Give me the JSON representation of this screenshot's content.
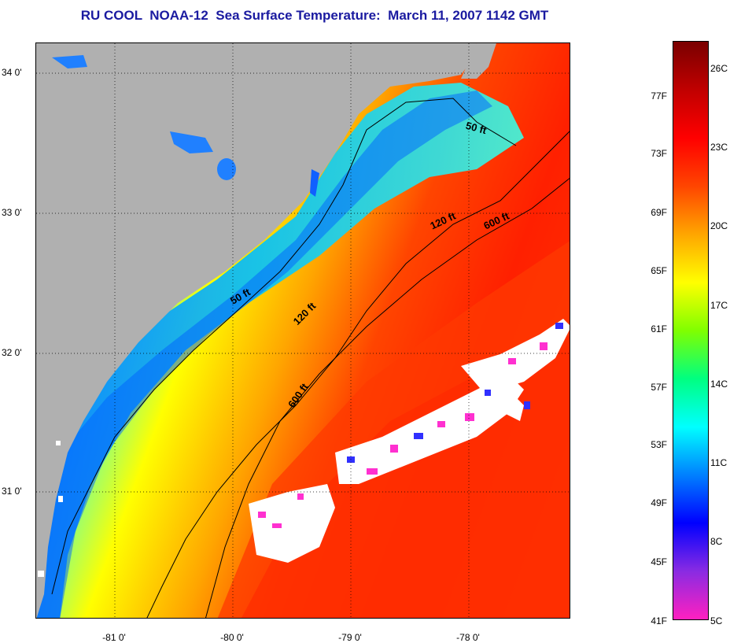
{
  "title": "RU COOL  NOAA-12  Sea Surface Temperature:  March 11, 2007 1142 GMT",
  "latitude_labels": [
    "34 0'",
    "33 0'",
    "32 0'",
    "31 0'"
  ],
  "longitude_labels": [
    "-81 0'",
    "-80 0'",
    "-79 0'",
    "-78 0'"
  ],
  "contours": [
    {
      "label": "50 ft"
    },
    {
      "label": "120 ft"
    },
    {
      "label": "600 ft"
    }
  ],
  "contour_labels": {
    "ne_50": "50 ft",
    "ne_120": "120 ft",
    "ne_600": "600 ft",
    "sw_50": "50 ft",
    "sw_120": "120 ft",
    "sw_600": "600 ft"
  },
  "colorbar": {
    "fahrenheit_labels": [
      "77F",
      "73F",
      "69F",
      "65F",
      "61F",
      "57F",
      "53F",
      "49F",
      "45F",
      "41F"
    ],
    "celsius_labels": [
      "26C",
      "23C",
      "20C",
      "17C",
      "14C",
      "11C",
      "8C",
      "5C"
    ],
    "colors": [
      "#ff20c0",
      "#8a2be2",
      "#0000ff",
      "#0080ff",
      "#00ffff",
      "#00ff80",
      "#80ff00",
      "#ffff00",
      "#ffa500",
      "#ff4500",
      "#ff0000",
      "#c00000",
      "#7a0000"
    ]
  },
  "colors": {
    "land": "#b0b0b0",
    "cloud": "#ffffff",
    "title": "#1a1aa0"
  }
}
